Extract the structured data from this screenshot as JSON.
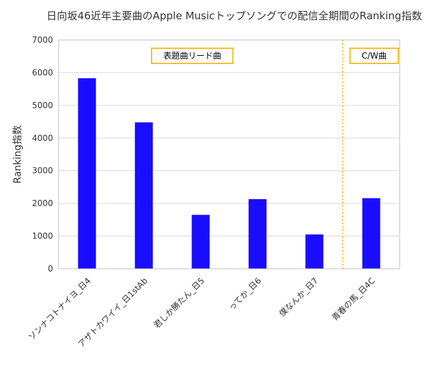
{
  "chart_data": {
    "type": "bar",
    "title": "日向坂46近年主要曲のApple Musicトップソングでの配信全期間のRanking指数",
    "xlabel": "",
    "ylabel": "Ranking指数",
    "ylim": [
      0,
      7000
    ],
    "yticks": [
      0,
      1000,
      2000,
      3000,
      4000,
      5000,
      6000,
      7000
    ],
    "categories": [
      "ソンナコトナイヨ_日4",
      "アザトカワイイ_日1stAb",
      "君しか勝たん_日5",
      "ってか_日6",
      "僕なんか_日7",
      "青春の馬_日4C"
    ],
    "values": [
      5830,
      4480,
      1650,
      2130,
      1050,
      2160
    ],
    "bar_color": "#1a0dff",
    "grid": true,
    "grid_color": "#d9d9d9",
    "annotations": [
      {
        "text": "表題曲リード曲",
        "border_color": "#f2c12e"
      },
      {
        "text": "C/W曲",
        "border_color": "#f2c12e"
      }
    ],
    "divider": {
      "between_index": 4,
      "style": "dotted",
      "color": "#f2a900"
    }
  }
}
